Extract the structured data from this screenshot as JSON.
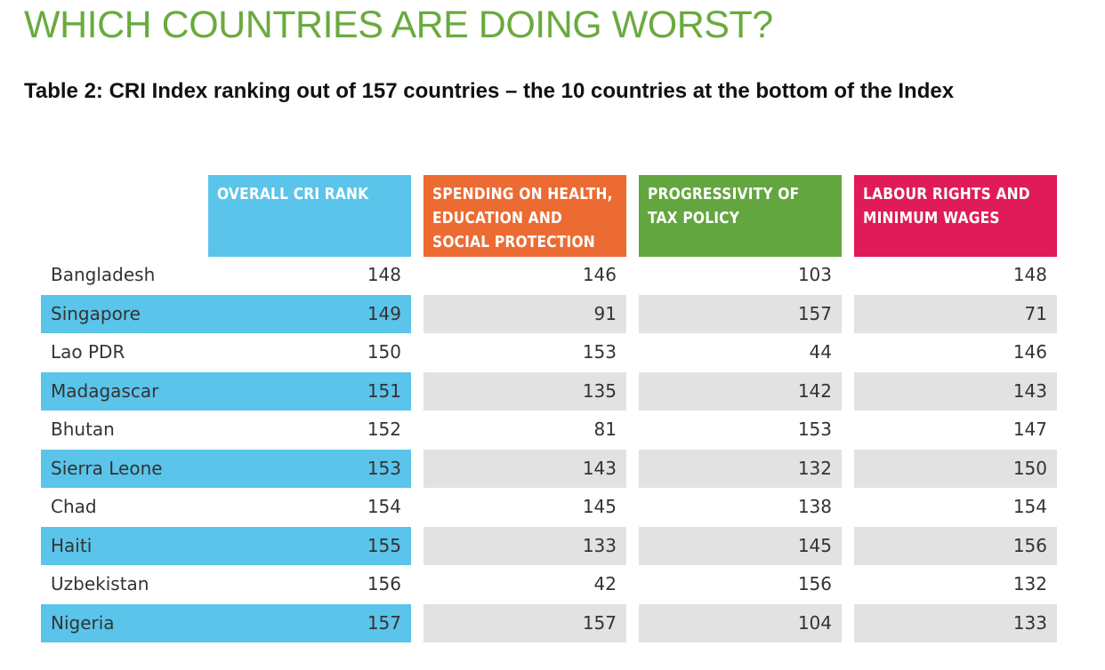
{
  "page": {
    "title": "WHICH COUNTRIES ARE DOING WORST?",
    "caption": "Table 2: CRI Index ranking out of 157 countries – the 10 countries at the bottom of the Index"
  },
  "table": {
    "headers": {
      "cri": [
        "OVERALL CRI RANK"
      ],
      "spending": [
        "SPENDING ON HEALTH,",
        "EDUCATION AND",
        "SOCIAL PROTECTION"
      ],
      "tax": [
        "PROGRESSIVITY OF",
        "TAX POLICY"
      ],
      "labour": [
        "LABOUR RIGHTS AND",
        "MINIMUM WAGES"
      ]
    },
    "header_colors": {
      "cri": "#5bc4ea",
      "spending": "#ec6b33",
      "tax": "#63a53f",
      "labour": "#e01b5a"
    },
    "rows": [
      {
        "country": "Bangladesh",
        "cri": "148",
        "spending": "146",
        "tax": "103",
        "labour": "148"
      },
      {
        "country": "Singapore",
        "cri": "149",
        "spending": "91",
        "tax": "157",
        "labour": "71"
      },
      {
        "country": "Lao PDR",
        "cri": "150",
        "spending": "153",
        "tax": "44",
        "labour": "146"
      },
      {
        "country": "Madagascar",
        "cri": "151",
        "spending": "135",
        "tax": "142",
        "labour": "143"
      },
      {
        "country": "Bhutan",
        "cri": "152",
        "spending": "81",
        "tax": "153",
        "labour": "147"
      },
      {
        "country": "Sierra Leone",
        "cri": "153",
        "spending": "143",
        "tax": "132",
        "labour": "150"
      },
      {
        "country": "Chad",
        "cri": "154",
        "spending": "145",
        "tax": "138",
        "labour": "154"
      },
      {
        "country": "Haiti",
        "cri": "155",
        "spending": "133",
        "tax": "145",
        "labour": "156"
      },
      {
        "country": "Uzbekistan",
        "cri": "156",
        "spending": "42",
        "tax": "156",
        "labour": "132"
      },
      {
        "country": "Nigeria",
        "cri": "157",
        "spending": "157",
        "tax": "104",
        "labour": "133"
      }
    ]
  }
}
